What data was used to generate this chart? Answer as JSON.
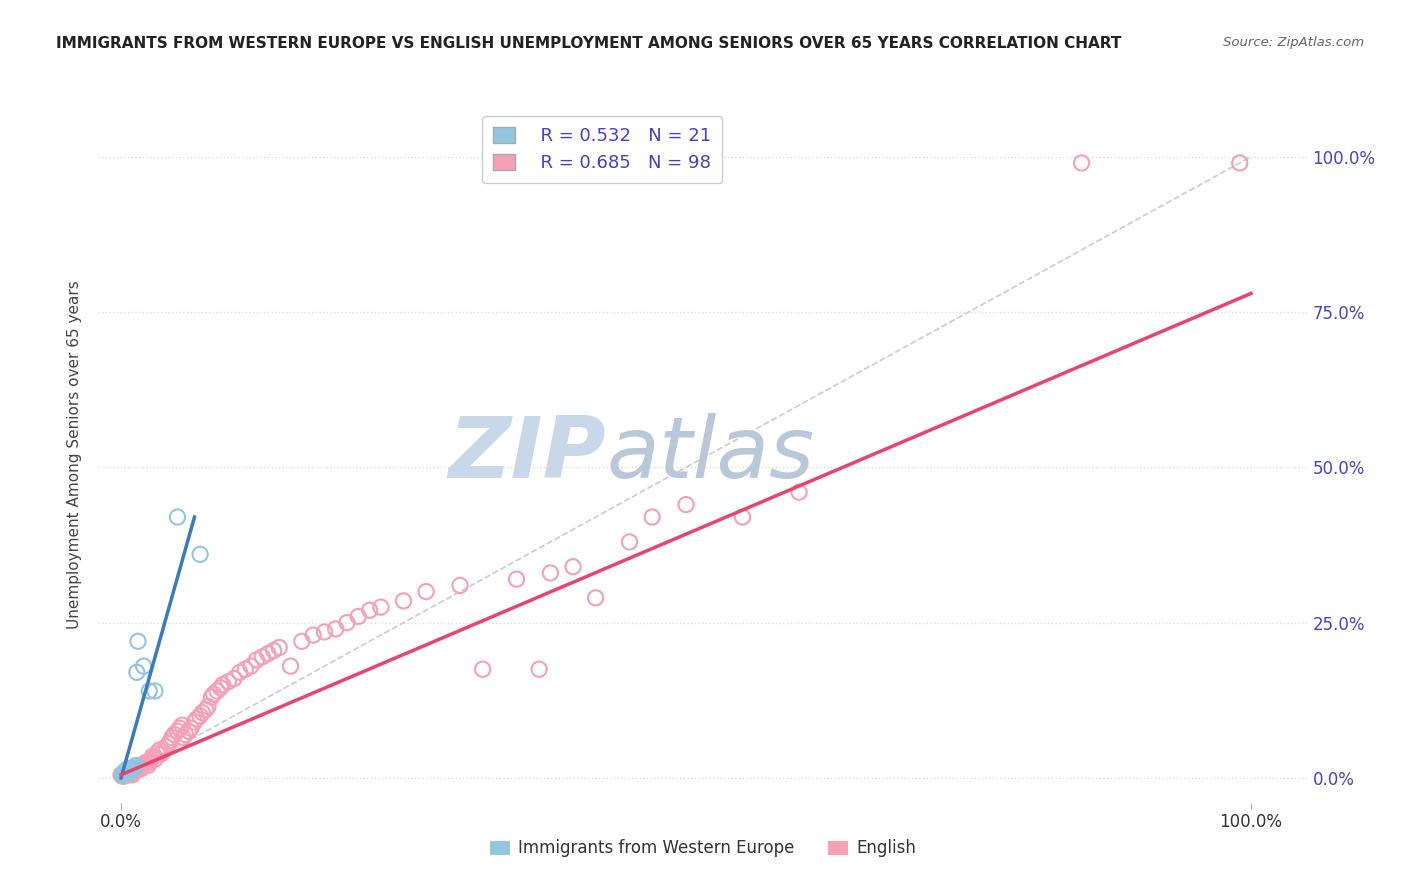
{
  "title": "IMMIGRANTS FROM WESTERN EUROPE VS ENGLISH UNEMPLOYMENT AMONG SENIORS OVER 65 YEARS CORRELATION CHART",
  "source": "Source: ZipAtlas.com",
  "ylabel": "Unemployment Among Seniors over 65 years",
  "x_tick_labels": [
    "0.0%",
    "100.0%"
  ],
  "y_tick_labels": [
    "0.0%",
    "25.0%",
    "50.0%",
    "75.0%",
    "100.0%"
  ],
  "y_tick_values": [
    0.0,
    0.25,
    0.5,
    0.75,
    1.0
  ],
  "xlim": [
    -0.02,
    1.05
  ],
  "ylim": [
    -0.04,
    1.08
  ],
  "blue_R": 0.532,
  "blue_N": 21,
  "pink_R": 0.685,
  "pink_N": 98,
  "blue_color": "#92c5de",
  "pink_color": "#f4a0b5",
  "blue_line_color": "#3a7abf",
  "pink_line_color": "#e8446e",
  "blue_scatter": [
    [
      0.001,
      0.005
    ],
    [
      0.002,
      0.005
    ],
    [
      0.003,
      0.008
    ],
    [
      0.003,
      0.01
    ],
    [
      0.004,
      0.01
    ],
    [
      0.005,
      0.012
    ],
    [
      0.006,
      0.015
    ],
    [
      0.007,
      0.008
    ],
    [
      0.008,
      0.015
    ],
    [
      0.009,
      0.012
    ],
    [
      0.01,
      0.015
    ],
    [
      0.011,
      0.016
    ],
    [
      0.012,
      0.018
    ],
    [
      0.013,
      0.02
    ],
    [
      0.014,
      0.17
    ],
    [
      0.015,
      0.22
    ],
    [
      0.02,
      0.18
    ],
    [
      0.025,
      0.14
    ],
    [
      0.03,
      0.14
    ],
    [
      0.05,
      0.42
    ],
    [
      0.07,
      0.36
    ]
  ],
  "pink_scatter": [
    [
      0.0,
      0.005
    ],
    [
      0.001,
      0.003
    ],
    [
      0.002,
      0.004
    ],
    [
      0.002,
      0.005
    ],
    [
      0.003,
      0.003
    ],
    [
      0.003,
      0.005
    ],
    [
      0.004,
      0.004
    ],
    [
      0.004,
      0.006
    ],
    [
      0.005,
      0.005
    ],
    [
      0.005,
      0.007
    ],
    [
      0.006,
      0.005
    ],
    [
      0.006,
      0.008
    ],
    [
      0.007,
      0.006
    ],
    [
      0.007,
      0.009
    ],
    [
      0.008,
      0.007
    ],
    [
      0.008,
      0.01
    ],
    [
      0.009,
      0.008
    ],
    [
      0.009,
      0.012
    ],
    [
      0.01,
      0.005
    ],
    [
      0.01,
      0.008
    ],
    [
      0.011,
      0.01
    ],
    [
      0.012,
      0.012
    ],
    [
      0.013,
      0.015
    ],
    [
      0.014,
      0.012
    ],
    [
      0.015,
      0.015
    ],
    [
      0.016,
      0.018
    ],
    [
      0.017,
      0.02
    ],
    [
      0.018,
      0.015
    ],
    [
      0.019,
      0.018
    ],
    [
      0.02,
      0.022
    ],
    [
      0.022,
      0.025
    ],
    [
      0.024,
      0.02
    ],
    [
      0.025,
      0.025
    ],
    [
      0.027,
      0.03
    ],
    [
      0.028,
      0.035
    ],
    [
      0.03,
      0.03
    ],
    [
      0.032,
      0.04
    ],
    [
      0.034,
      0.045
    ],
    [
      0.035,
      0.038
    ],
    [
      0.037,
      0.042
    ],
    [
      0.04,
      0.05
    ],
    [
      0.042,
      0.055
    ],
    [
      0.044,
      0.06
    ],
    [
      0.045,
      0.065
    ],
    [
      0.047,
      0.07
    ],
    [
      0.05,
      0.075
    ],
    [
      0.052,
      0.08
    ],
    [
      0.054,
      0.085
    ],
    [
      0.055,
      0.065
    ],
    [
      0.057,
      0.07
    ],
    [
      0.06,
      0.075
    ],
    [
      0.062,
      0.08
    ],
    [
      0.065,
      0.09
    ],
    [
      0.067,
      0.095
    ],
    [
      0.07,
      0.1
    ],
    [
      0.072,
      0.105
    ],
    [
      0.075,
      0.11
    ],
    [
      0.077,
      0.115
    ],
    [
      0.08,
      0.13
    ],
    [
      0.082,
      0.135
    ],
    [
      0.085,
      0.14
    ],
    [
      0.088,
      0.145
    ],
    [
      0.09,
      0.15
    ],
    [
      0.095,
      0.155
    ],
    [
      0.1,
      0.16
    ],
    [
      0.105,
      0.17
    ],
    [
      0.11,
      0.175
    ],
    [
      0.115,
      0.18
    ],
    [
      0.12,
      0.19
    ],
    [
      0.125,
      0.195
    ],
    [
      0.13,
      0.2
    ],
    [
      0.135,
      0.205
    ],
    [
      0.14,
      0.21
    ],
    [
      0.15,
      0.18
    ],
    [
      0.16,
      0.22
    ],
    [
      0.17,
      0.23
    ],
    [
      0.18,
      0.235
    ],
    [
      0.19,
      0.24
    ],
    [
      0.2,
      0.25
    ],
    [
      0.21,
      0.26
    ],
    [
      0.22,
      0.27
    ],
    [
      0.23,
      0.275
    ],
    [
      0.25,
      0.285
    ],
    [
      0.27,
      0.3
    ],
    [
      0.3,
      0.31
    ],
    [
      0.32,
      0.175
    ],
    [
      0.35,
      0.32
    ],
    [
      0.37,
      0.175
    ],
    [
      0.38,
      0.33
    ],
    [
      0.4,
      0.34
    ],
    [
      0.42,
      0.29
    ],
    [
      0.45,
      0.38
    ],
    [
      0.47,
      0.42
    ],
    [
      0.5,
      0.44
    ],
    [
      0.55,
      0.42
    ],
    [
      0.6,
      0.46
    ],
    [
      0.85,
      0.99
    ],
    [
      0.99,
      0.99
    ]
  ],
  "blue_line": {
    "x0": 0.0,
    "x1": 0.065,
    "y0": 0.0,
    "y1": 0.42
  },
  "pink_line": {
    "x0": 0.0,
    "x1": 1.0,
    "y0": 0.005,
    "y1": 0.78
  },
  "diag_line": {
    "x0": 0.0,
    "x1": 1.0,
    "y0": 0.0,
    "y1": 1.0
  },
  "watermark_zip": "ZIP",
  "watermark_atlas": "atlas",
  "watermark_color_zip": "#c8d8e8",
  "watermark_color_atlas": "#b8c8d8",
  "background_color": "#ffffff",
  "legend_label_blue": "Immigrants from Western Europe",
  "legend_label_pink": "English",
  "legend_R_N_color": "#4040cc",
  "grid_color": "#dddddd"
}
